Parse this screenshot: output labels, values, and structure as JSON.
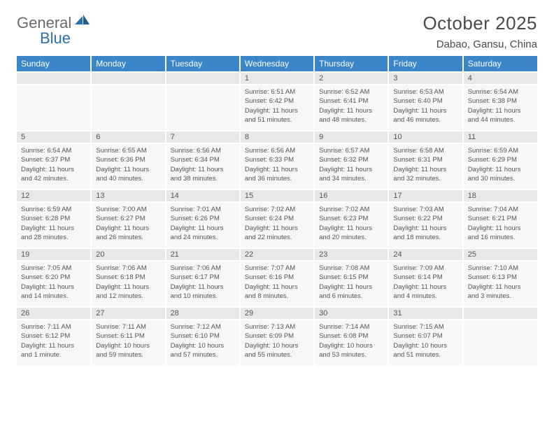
{
  "logo": {
    "text1": "General",
    "text2": "Blue"
  },
  "title": "October 2025",
  "location": "Dabao, Gansu, China",
  "dayHeaders": [
    "Sunday",
    "Monday",
    "Tuesday",
    "Wednesday",
    "Thursday",
    "Friday",
    "Saturday"
  ],
  "colors": {
    "headerBg": "#3b86c8",
    "dayNumBg": "#e8e8e8",
    "cellBg": "#f7f7f7",
    "text": "#4a4a4a",
    "logoBlue": "#2b6fb0"
  },
  "fonts": {
    "title_pt": 26,
    "location_pt": 15,
    "dayHeader_pt": 12,
    "dayNum_pt": 11,
    "cellBody_pt": 9.5
  },
  "startWeekday": 3,
  "daysInMonth": 31,
  "days": {
    "1": {
      "sunrise": "6:51 AM",
      "sunset": "6:42 PM",
      "daylight": "11 hours and 51 minutes."
    },
    "2": {
      "sunrise": "6:52 AM",
      "sunset": "6:41 PM",
      "daylight": "11 hours and 48 minutes."
    },
    "3": {
      "sunrise": "6:53 AM",
      "sunset": "6:40 PM",
      "daylight": "11 hours and 46 minutes."
    },
    "4": {
      "sunrise": "6:54 AM",
      "sunset": "6:38 PM",
      "daylight": "11 hours and 44 minutes."
    },
    "5": {
      "sunrise": "6:54 AM",
      "sunset": "6:37 PM",
      "daylight": "11 hours and 42 minutes."
    },
    "6": {
      "sunrise": "6:55 AM",
      "sunset": "6:36 PM",
      "daylight": "11 hours and 40 minutes."
    },
    "7": {
      "sunrise": "6:56 AM",
      "sunset": "6:34 PM",
      "daylight": "11 hours and 38 minutes."
    },
    "8": {
      "sunrise": "6:56 AM",
      "sunset": "6:33 PM",
      "daylight": "11 hours and 36 minutes."
    },
    "9": {
      "sunrise": "6:57 AM",
      "sunset": "6:32 PM",
      "daylight": "11 hours and 34 minutes."
    },
    "10": {
      "sunrise": "6:58 AM",
      "sunset": "6:31 PM",
      "daylight": "11 hours and 32 minutes."
    },
    "11": {
      "sunrise": "6:59 AM",
      "sunset": "6:29 PM",
      "daylight": "11 hours and 30 minutes."
    },
    "12": {
      "sunrise": "6:59 AM",
      "sunset": "6:28 PM",
      "daylight": "11 hours and 28 minutes."
    },
    "13": {
      "sunrise": "7:00 AM",
      "sunset": "6:27 PM",
      "daylight": "11 hours and 26 minutes."
    },
    "14": {
      "sunrise": "7:01 AM",
      "sunset": "6:26 PM",
      "daylight": "11 hours and 24 minutes."
    },
    "15": {
      "sunrise": "7:02 AM",
      "sunset": "6:24 PM",
      "daylight": "11 hours and 22 minutes."
    },
    "16": {
      "sunrise": "7:02 AM",
      "sunset": "6:23 PM",
      "daylight": "11 hours and 20 minutes."
    },
    "17": {
      "sunrise": "7:03 AM",
      "sunset": "6:22 PM",
      "daylight": "11 hours and 18 minutes."
    },
    "18": {
      "sunrise": "7:04 AM",
      "sunset": "6:21 PM",
      "daylight": "11 hours and 16 minutes."
    },
    "19": {
      "sunrise": "7:05 AM",
      "sunset": "6:20 PM",
      "daylight": "11 hours and 14 minutes."
    },
    "20": {
      "sunrise": "7:06 AM",
      "sunset": "6:18 PM",
      "daylight": "11 hours and 12 minutes."
    },
    "21": {
      "sunrise": "7:06 AM",
      "sunset": "6:17 PM",
      "daylight": "11 hours and 10 minutes."
    },
    "22": {
      "sunrise": "7:07 AM",
      "sunset": "6:16 PM",
      "daylight": "11 hours and 8 minutes."
    },
    "23": {
      "sunrise": "7:08 AM",
      "sunset": "6:15 PM",
      "daylight": "11 hours and 6 minutes."
    },
    "24": {
      "sunrise": "7:09 AM",
      "sunset": "6:14 PM",
      "daylight": "11 hours and 4 minutes."
    },
    "25": {
      "sunrise": "7:10 AM",
      "sunset": "6:13 PM",
      "daylight": "11 hours and 3 minutes."
    },
    "26": {
      "sunrise": "7:11 AM",
      "sunset": "6:12 PM",
      "daylight": "11 hours and 1 minute."
    },
    "27": {
      "sunrise": "7:11 AM",
      "sunset": "6:11 PM",
      "daylight": "10 hours and 59 minutes."
    },
    "28": {
      "sunrise": "7:12 AM",
      "sunset": "6:10 PM",
      "daylight": "10 hours and 57 minutes."
    },
    "29": {
      "sunrise": "7:13 AM",
      "sunset": "6:09 PM",
      "daylight": "10 hours and 55 minutes."
    },
    "30": {
      "sunrise": "7:14 AM",
      "sunset": "6:08 PM",
      "daylight": "10 hours and 53 minutes."
    },
    "31": {
      "sunrise": "7:15 AM",
      "sunset": "6:07 PM",
      "daylight": "10 hours and 51 minutes."
    }
  },
  "labels": {
    "sunrise": "Sunrise:",
    "sunset": "Sunset:",
    "daylight": "Daylight:"
  }
}
